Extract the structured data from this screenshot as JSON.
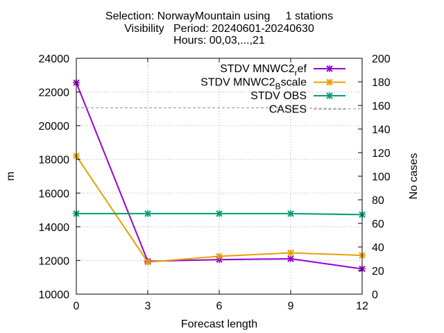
{
  "chart_data": {
    "type": "line",
    "title": [
      "Selection: NorwayMountain using     1 stations",
      "Visibility   Period: 20240601-20240630",
      "Hours: 00,03,...,21"
    ],
    "xlabel": "Forecast length",
    "ylabel": "m",
    "y2label": "No cases",
    "x": [
      0,
      3,
      6,
      9,
      12
    ],
    "xlim": [
      0,
      12
    ],
    "ylim": [
      10000,
      24000
    ],
    "y2lim": [
      0,
      200
    ],
    "xticks": [
      0,
      3,
      6,
      9,
      12
    ],
    "yticks": [
      10000,
      12000,
      14000,
      16000,
      18000,
      20000,
      22000,
      24000
    ],
    "y2ticks": [
      0,
      20,
      40,
      60,
      80,
      100,
      120,
      140,
      160,
      180,
      200
    ],
    "grid": true,
    "legend_position": "top-right",
    "series": [
      {
        "name": "STDV MNWC2_ref",
        "label_main": "STDV MNWC2",
        "label_sub": "r",
        "label_rest": "ef",
        "axis": "y",
        "color": "#9400d3",
        "marker": "x",
        "values": [
          22550,
          11950,
          12050,
          12100,
          11500
        ]
      },
      {
        "name": "STDV MNWC2_Bscale",
        "label_main": "STDV MNWC2",
        "label_sub": "B",
        "label_rest": "scale",
        "axis": "y",
        "color": "#e69f00",
        "marker": "x",
        "values": [
          18200,
          11900,
          12250,
          12450,
          12300
        ]
      },
      {
        "name": "STDV OBS",
        "label_main": "STDV OBS",
        "label_sub": "",
        "label_rest": "",
        "axis": "y",
        "color": "#009e73",
        "marker": "x",
        "values": [
          14780,
          14780,
          14780,
          14780,
          14720
        ]
      },
      {
        "name": "CASES",
        "label_main": "CASES",
        "label_sub": "",
        "label_rest": "",
        "axis": "y2",
        "color": "#a0a0a0",
        "marker": "none",
        "dashed": true,
        "values": [
          158,
          158,
          158,
          158,
          157
        ]
      }
    ]
  }
}
